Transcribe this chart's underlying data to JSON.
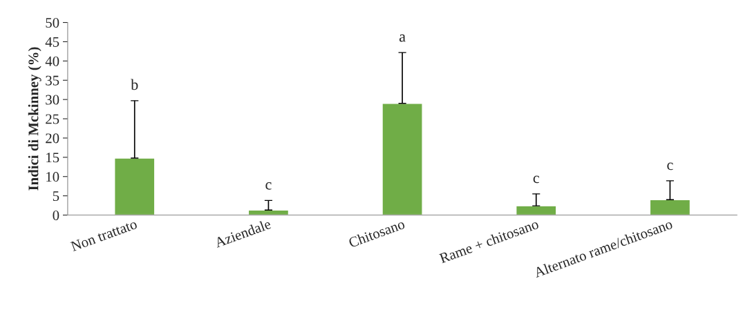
{
  "chart_data": {
    "type": "bar",
    "ylabel": "Indici di Mckinney (%)",
    "categories": [
      "Non trattato",
      "Aziendale",
      "Chitosano",
      "Rame + chitosano",
      "Alternato rame/chitosano"
    ],
    "values": [
      14.8,
      1.3,
      29.0,
      2.4,
      4.0
    ],
    "errors": [
      [
        14.8,
        29.7
      ],
      [
        1.3,
        3.8
      ],
      [
        29.0,
        42.2
      ],
      [
        2.4,
        5.5
      ],
      [
        4.0,
        8.9
      ]
    ],
    "color": "#70ad47",
    "ylim": [
      0,
      50
    ],
    "yticks": [
      0,
      5,
      10,
      15,
      20,
      25,
      30,
      35,
      40,
      45,
      50
    ],
    "grid": false,
    "annotations": [
      "b",
      "c",
      "a",
      "c",
      "c"
    ]
  }
}
